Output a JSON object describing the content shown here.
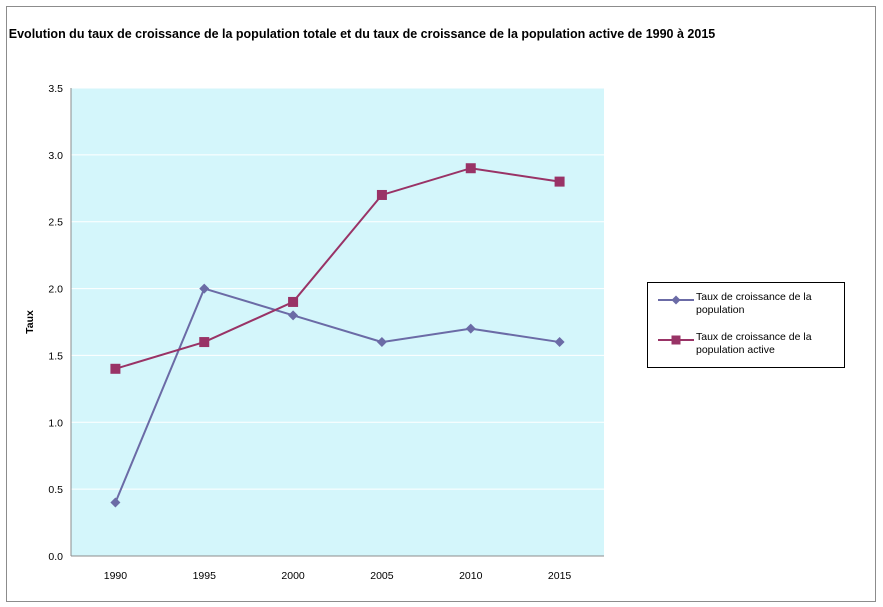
{
  "chart_data": {
    "type": "line",
    "title": "Evolution du taux de croissance de la population totale et du taux de croissance de la population active de 1990 à 2015",
    "xlabel": "",
    "ylabel": "Taux",
    "categories": [
      "1990",
      "1995",
      "2000",
      "2005",
      "2010",
      "2015"
    ],
    "ylim": [
      0,
      3.5
    ],
    "yticks": [
      "0.0",
      "0.5",
      "1.0",
      "1.5",
      "2.0",
      "2.5",
      "3.0",
      "3.5"
    ],
    "grid": true,
    "legend_position": "right",
    "plot_background": "#d4f6fb",
    "series": [
      {
        "name": "Taux de croissance de la population",
        "values": [
          0.4,
          2.0,
          1.8,
          1.6,
          1.7,
          1.6
        ],
        "color": "#6b6ba6",
        "marker": "diamond"
      },
      {
        "name": "Taux de croissance de la population active",
        "values": [
          1.4,
          1.6,
          1.9,
          2.7,
          2.9,
          2.8
        ],
        "color": "#993366",
        "marker": "square"
      }
    ]
  }
}
